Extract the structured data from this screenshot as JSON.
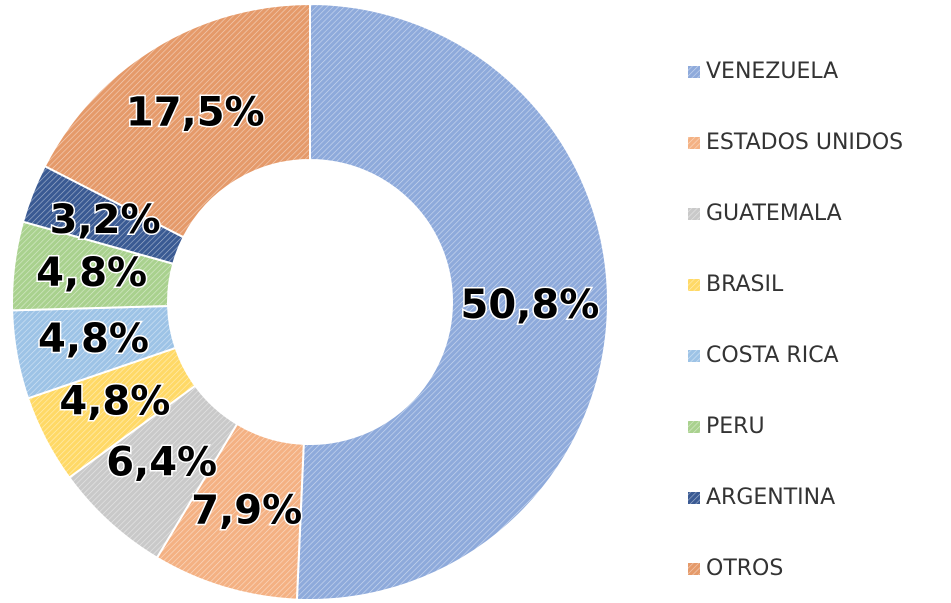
{
  "chart_data": {
    "type": "donut",
    "categories": [
      "VENEZUELA",
      "ESTADOS UNIDOS",
      "GUATEMALA",
      "BRASIL",
      "COSTA RICA",
      "PERU",
      "ARGENTINA",
      "OTROS"
    ],
    "values": [
      50.8,
      7.9,
      6.4,
      4.8,
      4.8,
      4.8,
      3.2,
      17.5
    ],
    "value_labels": [
      "50,8%",
      "7,9%",
      "6,4%",
      "4,8%",
      "4,8%",
      "4,8%",
      "3,2%",
      "17,5%"
    ],
    "colors": [
      "#8eaadb",
      "#f4b183",
      "#c9c9c9",
      "#ffd966",
      "#9dc3e6",
      "#a9d18e",
      "#3a5a93",
      "#e59a6a"
    ],
    "legend": "right"
  }
}
